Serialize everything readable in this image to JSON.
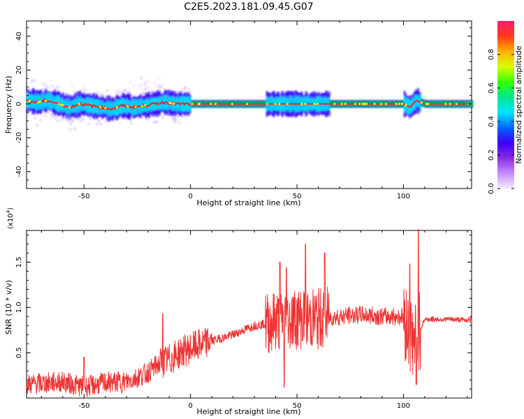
{
  "title": "C2E5.2023.181.09.45.G07",
  "chart_data": [
    {
      "type": "heatmap",
      "xlabel": "Height of straight line (km)",
      "ylabel": "Frequency (Hz)",
      "xlim": [
        -77,
        132
      ],
      "ylim": [
        -50,
        49
      ],
      "x_ticks": [
        -50,
        0,
        50,
        100
      ],
      "x_tick_labels": [
        "-50",
        "0",
        "50",
        "100"
      ],
      "y_ticks": [
        -40,
        -20,
        0,
        20,
        40
      ],
      "y_tick_labels": [
        "-40",
        "-20",
        "0",
        "20",
        "40"
      ],
      "grid": false,
      "colorbar": {
        "label": "Normalized spectral amplitude",
        "range": [
          0,
          1
        ],
        "ticks": [
          0.0,
          0.2,
          0.4,
          0.6,
          0.8
        ],
        "tick_labels": [
          "0.0",
          "0.2",
          "0.4",
          "0.6",
          "0.8"
        ],
        "colors": [
          "#f4ecff",
          "#c58cff",
          "#8a2be2",
          "#3a00ff",
          "#0066ff",
          "#00e5ff",
          "#00e890",
          "#33ff00",
          "#d7ff00",
          "#ffb000",
          "#ff3a1a",
          "#ff1a70"
        ]
      },
      "ridge": {
        "description_values": "dominant frequency vs height",
        "x": [
          -77,
          -72,
          -67,
          -62,
          -57,
          -52,
          -47,
          -42,
          -37,
          -32,
          -27,
          -22,
          -17,
          -12,
          -7,
          -2,
          0,
          10,
          20,
          35,
          40,
          50,
          60,
          70,
          80,
          90,
          100,
          103,
          106,
          110,
          120,
          132
        ],
        "y": [
          2,
          1,
          2,
          0,
          -2,
          0,
          -1,
          -2,
          -3,
          -1,
          -2,
          -1,
          0,
          1,
          0,
          0,
          0,
          0,
          0,
          0,
          0,
          0,
          0,
          0,
          0,
          0,
          0,
          -2,
          2,
          0,
          0,
          0
        ]
      }
    },
    {
      "type": "line",
      "xlabel": "Height of straight line (km)",
      "ylabel": "SNR (10 * v/v)",
      "y_multiplier_label": "(x10",
      "y_multiplier_exp": "4",
      "xlim": [
        -77,
        132
      ],
      "ylim": [
        0.0,
        1.85
      ],
      "x_ticks": [
        -50,
        0,
        50,
        100
      ],
      "x_tick_labels": [
        "-50",
        "0",
        "50",
        "100"
      ],
      "y_ticks": [
        0.5,
        1.0,
        1.5
      ],
      "y_tick_labels": [
        "0.5",
        "1.0",
        "1.5"
      ],
      "grid": false,
      "color": "#ee3333",
      "series": [
        {
          "trend_x": [
            -77,
            -60,
            -50,
            -40,
            -30,
            -20,
            -15,
            -10,
            -5,
            0,
            10,
            20,
            30,
            35,
            40,
            50,
            60,
            70,
            80,
            90,
            100,
            105,
            110,
            120,
            132
          ],
          "trend_y": [
            0.15,
            0.18,
            0.12,
            0.17,
            0.18,
            0.28,
            0.38,
            0.42,
            0.5,
            0.55,
            0.63,
            0.7,
            0.8,
            0.82,
            0.85,
            0.88,
            0.87,
            0.9,
            0.92,
            0.9,
            0.9,
            0.6,
            0.87,
            0.87,
            0.86
          ],
          "spikes": [
            {
              "x": -50,
              "y": 0.45
            },
            {
              "x": -13,
              "y": 0.93
            },
            {
              "x": 42,
              "y": 1.5
            },
            {
              "x": 45,
              "y": 1.44
            },
            {
              "x": 54,
              "y": 1.7
            },
            {
              "x": 63,
              "y": 1.6
            },
            {
              "x": 103,
              "y": 1.48
            },
            {
              "x": 107,
              "y": 1.87
            },
            {
              "x": 44,
              "y": 0.12
            },
            {
              "x": 106,
              "y": 0.15
            }
          ]
        }
      ]
    }
  ]
}
